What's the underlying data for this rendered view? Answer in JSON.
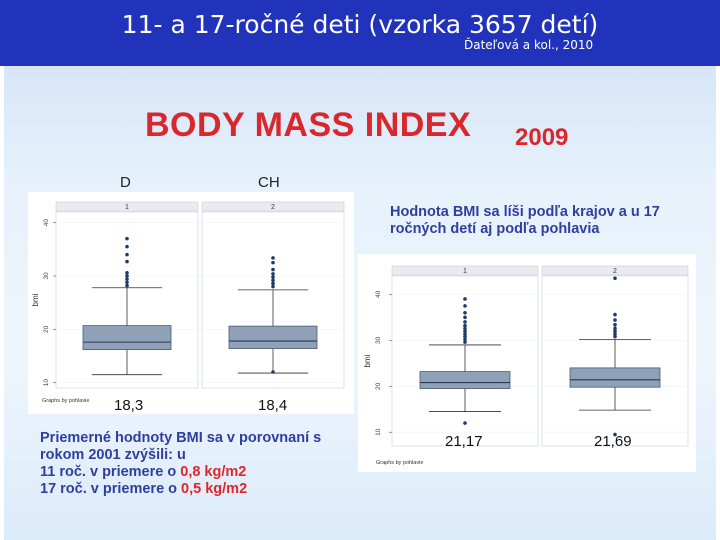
{
  "header": {
    "title": "11- a 17-ročné deti (vzorka 3657 detí)",
    "citation": "Ďateľová a kol., 2010"
  },
  "colors": {
    "header_bg": "#2233bb",
    "accent_red": "#e0262b",
    "note_blue": "#2f3f9f",
    "box_fill": "#8fa1b8",
    "point": "#1d3c67"
  },
  "slide": {
    "bmi_title": "BODY  MASS  INDEX",
    "bmi_year": "2009",
    "label_d": "D",
    "label_ch": "CH",
    "note_right": "Hodnota BMI sa líši podľa krajov a u 17 ročných detí aj podľa pohlavia",
    "note_left": {
      "line1": "Priemerné hodnoty BMI sa v porovnaní s rokom 2001 zvýšili: u",
      "line2_prefix": "11 roč. v priemere o ",
      "line2_value": "0,8 kg/m2",
      "line3_prefix": "17 roč. v priemere o ",
      "line3_value": "0,5 kg/m2"
    },
    "means": {
      "left_1": "18,3",
      "left_2": "18,4",
      "right_1": "21,17",
      "right_2": "21,69"
    }
  },
  "chart_data": [
    {
      "type": "box",
      "panels": [
        "1",
        "2"
      ],
      "ylabel": "bmi",
      "ylim": [
        9,
        42
      ],
      "yticks": [
        10,
        20,
        30,
        40
      ],
      "footer": "Graphs by pohlavie",
      "boxes": [
        {
          "panel": "1",
          "whisker_low": 11.5,
          "q1": 16.2,
          "median": 17.6,
          "q3": 20.7,
          "whisker_high": 27.8,
          "outliers": [
            28.2,
            28.8,
            29.4,
            30.0,
            30.6,
            32.7,
            34.0,
            35.5,
            37.0
          ]
        },
        {
          "panel": "2",
          "whisker_low": 11.8,
          "q1": 16.4,
          "median": 17.8,
          "q3": 20.6,
          "whisker_high": 27.4,
          "outliers": [
            12.0,
            28.0,
            28.6,
            29.2,
            29.8,
            30.4,
            31.2,
            32.5,
            33.4
          ]
        }
      ]
    },
    {
      "type": "box",
      "panels": [
        "1",
        "2"
      ],
      "ylabel": "bmi",
      "ylim": [
        7,
        44
      ],
      "yticks": [
        10,
        20,
        30,
        40
      ],
      "footer": "Graphs by pohlavie",
      "boxes": [
        {
          "panel": "1",
          "whisker_low": 14.5,
          "q1": 19.5,
          "median": 20.8,
          "q3": 23.2,
          "whisker_high": 29.0,
          "outliers": [
            12.0,
            29.6,
            30.2,
            30.8,
            31.4,
            32.0,
            32.6,
            33.2,
            34.0,
            35.0,
            36.0,
            37.5,
            39.0
          ]
        },
        {
          "panel": "2",
          "whisker_low": 14.8,
          "q1": 19.8,
          "median": 21.4,
          "q3": 24.0,
          "whisker_high": 30.2,
          "outliers": [
            9.5,
            30.8,
            31.4,
            32.0,
            32.6,
            33.4,
            34.4,
            35.6,
            43.5
          ]
        }
      ]
    }
  ]
}
